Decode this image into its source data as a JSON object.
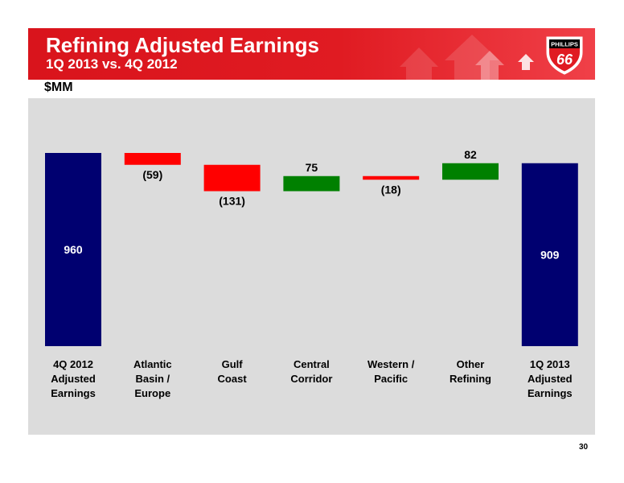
{
  "slide": {
    "title": "Refining Adjusted Earnings",
    "subtitle": "1Q 2013 vs. 4Q 2012",
    "units": "$MM",
    "page_number": "30",
    "logo_text_top": "PHILLIPS",
    "logo_text_main": "66"
  },
  "colors": {
    "total": "#000070",
    "decrease": "#ff0000",
    "increase": "#008000",
    "banner": "#e01b22",
    "plot_background": "#dcdcdc"
  },
  "chart_data": {
    "type": "bar",
    "subtype": "waterfall",
    "ylim": [
      0,
      1000
    ],
    "grid": false,
    "legend": "none",
    "categories": [
      "4Q 2012 Adjusted Earnings",
      "Atlantic Basin / Europe",
      "Gulf Coast",
      "Central Corridor",
      "Western / Pacific",
      "Other Refining",
      "1Q 2013 Adjusted Earnings"
    ],
    "category_lines": [
      [
        "4Q 2012",
        "Adjusted",
        "Earnings"
      ],
      [
        "Atlantic",
        "Basin /",
        "Europe"
      ],
      [
        "Gulf",
        "Coast"
      ],
      [
        "Central",
        "Corridor"
      ],
      [
        "Western /",
        "Pacific"
      ],
      [
        "Other",
        "Refining"
      ],
      [
        "1Q 2013",
        "Adjusted",
        "Earnings"
      ]
    ],
    "values": [
      960,
      -59,
      -131,
      75,
      -18,
      82,
      909
    ],
    "kinds": [
      "total",
      "decrease",
      "decrease",
      "increase",
      "decrease",
      "increase",
      "total"
    ],
    "data_labels": [
      "960",
      "(59)",
      "(131)",
      "75",
      "(18)",
      "82",
      "909"
    ]
  }
}
